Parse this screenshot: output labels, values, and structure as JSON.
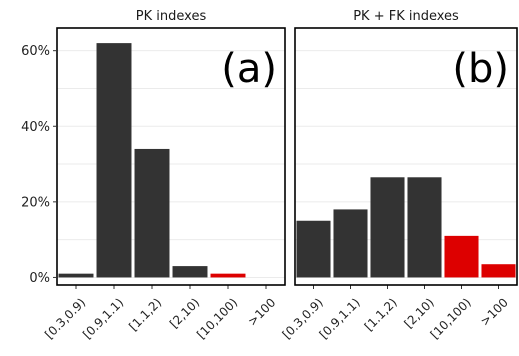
{
  "colors": {
    "bar": "#333333",
    "highlight": "#dd0000"
  },
  "chart_data": [
    {
      "type": "bar",
      "title": "PK indexes",
      "panel_label": "(a)",
      "categories": [
        "[0.3,0.9)",
        "[0.9,1.1)",
        "[1.1,2)",
        "[2,10)",
        "[10,100)",
        ">100"
      ],
      "values": [
        1,
        62,
        34,
        3,
        1,
        0
      ],
      "highlight_categories": [
        "[10,100)",
        ">100"
      ],
      "y_tick_labels": [
        "0%",
        "20%",
        "40%",
        "60%"
      ],
      "y_tick_values": [
        0,
        20,
        40,
        60
      ],
      "ylim": [
        -2,
        66
      ],
      "grid": true
    },
    {
      "type": "bar",
      "title": "PK + FK indexes",
      "panel_label": "(b)",
      "categories": [
        "[0.3,0.9)",
        "[0.9,1.1)",
        "[1.1,2)",
        "[2,10)",
        "[10,100)",
        ">100"
      ],
      "values": [
        15,
        18,
        26.5,
        26.5,
        11,
        3.5
      ],
      "highlight_categories": [
        "[10,100)",
        ">100"
      ],
      "ylim": [
        -2,
        66
      ],
      "grid": true
    }
  ]
}
